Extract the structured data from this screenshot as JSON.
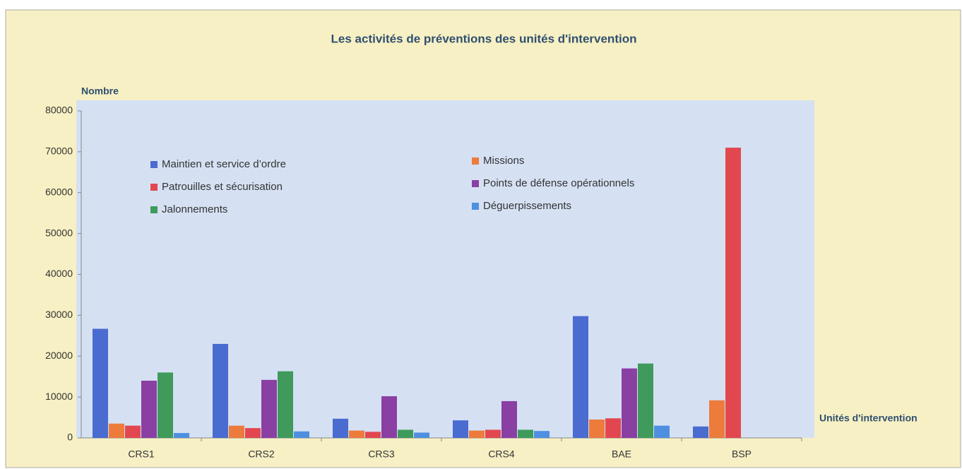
{
  "chart_data": {
    "type": "bar",
    "title": "Les activités  de préventions des unités d'intervention",
    "y_label": "Nombre",
    "x_label": "Unités d'intervention",
    "categories": [
      "CRS1",
      "CRS2",
      "CRS3",
      "CRS4",
      "BAE",
      "BSP"
    ],
    "series": [
      {
        "name": "Maintien et service d’ordre",
        "color": "#4a6bd0",
        "values": [
          26700,
          23000,
          4700,
          4300,
          29800,
          2800
        ]
      },
      {
        "name": "Missions",
        "color": "#ec7b3c",
        "values": [
          3500,
          3000,
          1800,
          1800,
          4500,
          9200
        ]
      },
      {
        "name": "Patrouilles et sécurisation",
        "color": "#e2474f",
        "values": [
          3000,
          2400,
          1500,
          2000,
          4800,
          71000
        ]
      },
      {
        "name": "Points de défense opérationnels",
        "color": "#8a3fa3",
        "values": [
          14000,
          14200,
          10200,
          9000,
          17000,
          0
        ]
      },
      {
        "name": "Jalonnements",
        "color": "#3f9a5c",
        "values": [
          16000,
          16300,
          2000,
          2000,
          18200,
          0
        ]
      },
      {
        "name": "Déguerpissements",
        "color": "#4f8fe0",
        "values": [
          1200,
          1600,
          1300,
          1700,
          3000,
          0
        ]
      }
    ],
    "ylim": [
      0,
      80000
    ],
    "yticks": [
      0,
      10000,
      20000,
      30000,
      40000,
      50000,
      60000,
      70000,
      80000
    ],
    "grid": false
  }
}
